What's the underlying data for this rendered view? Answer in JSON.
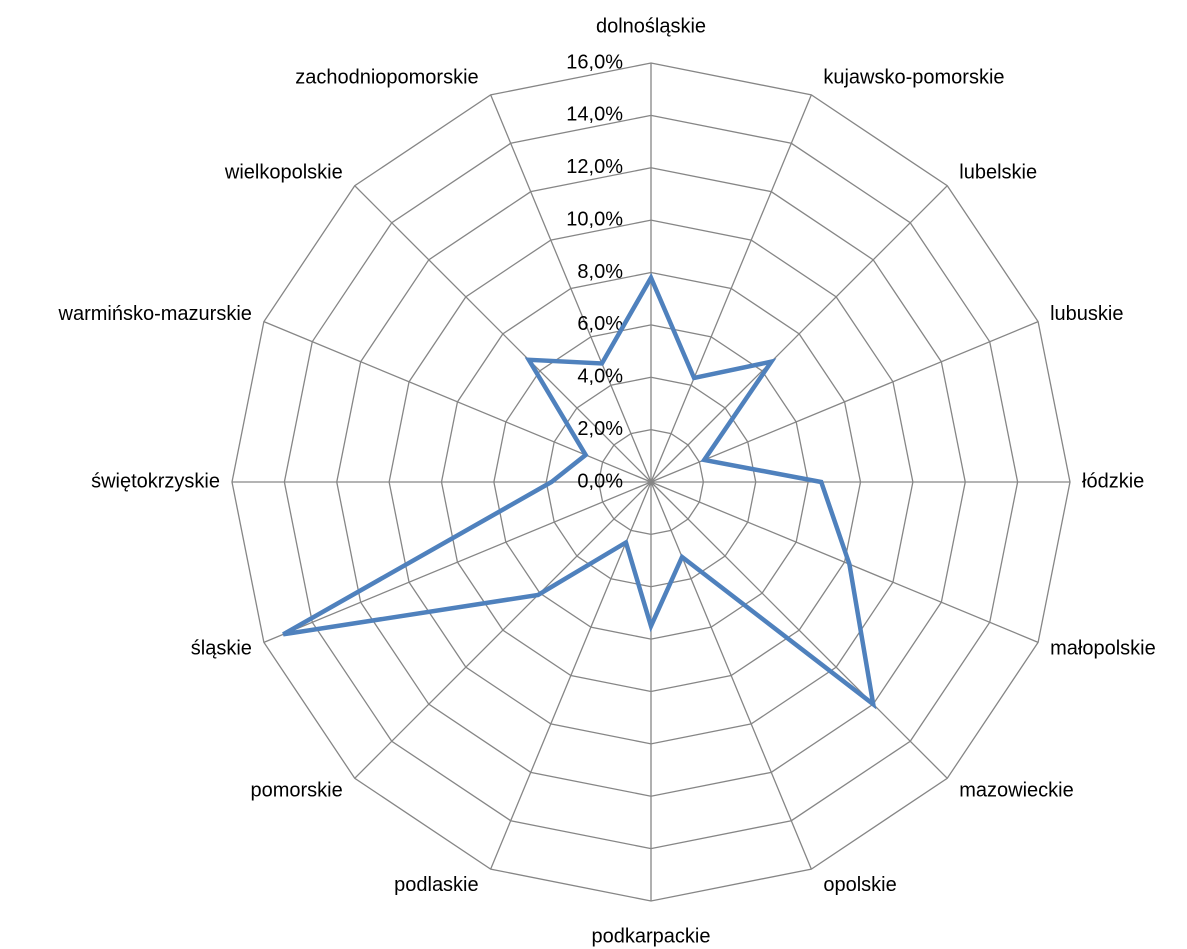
{
  "chart_data": {
    "type": "radar",
    "categories": [
      "dolnośląskie",
      "kujawsko-pomorskie",
      "lubelskie",
      "lubuskie",
      "łódzkie",
      "małopolskie",
      "mazowieckie",
      "opolskie",
      "podkarpackie",
      "podlaskie",
      "pomorskie",
      "śląskie",
      "świętokrzyskie",
      "warmińsko-mazurskie",
      "wielkopolskie",
      "zachodniopomorskie"
    ],
    "series": [
      {
        "color": "#4f81bd",
        "values": [
          7.8,
          4.3,
          6.5,
          2.2,
          6.5,
          8.2,
          12.0,
          3.1,
          5.5,
          2.5,
          6.1,
          15.2,
          3.8,
          2.7,
          6.6,
          4.9
        ]
      }
    ],
    "ylim": [
      0,
      16
    ],
    "yticks": [
      {
        "value": 0,
        "label": "0,0%"
      },
      {
        "value": 2,
        "label": "2,0%"
      },
      {
        "value": 4,
        "label": "4,0%"
      },
      {
        "value": 6,
        "label": "6,0%"
      },
      {
        "value": 8,
        "label": "8,0%"
      },
      {
        "value": 10,
        "label": "10,0%"
      },
      {
        "value": 12,
        "label": "12,0%"
      },
      {
        "value": 14,
        "label": "14,0%"
      },
      {
        "value": 16,
        "label": "16,0%"
      }
    ],
    "grid": true
  }
}
